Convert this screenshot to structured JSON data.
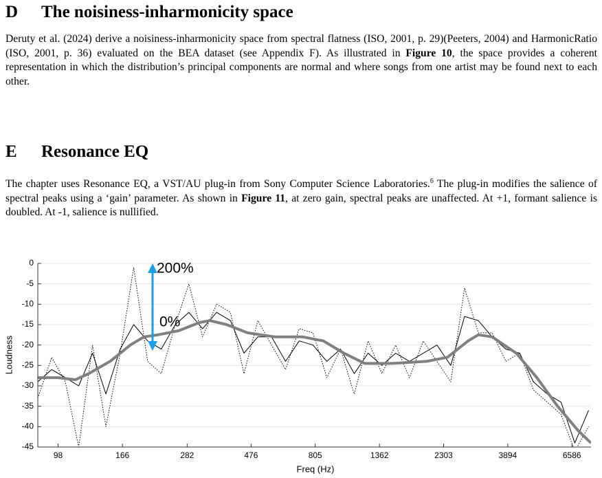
{
  "sections": [
    {
      "label": "D",
      "title": "The noisiness-inharmonicity space",
      "body": [
        "Deruty et al. (2024) derive a noisiness-inharmonicity space from spectral flatness (ISO, 2001, p. 29)(Peeters, 2004) and HarmonicRatio (ISO, 2001, p. 36) evaluated on the BEA dataset (see Appendix F). As illustrated in ",
        "Figure 10",
        ", the space provides a coherent representation in which the distribution’s principal components are normal and where songs from one artist may be found next to each other."
      ]
    },
    {
      "label": "E",
      "title": "Resonance EQ",
      "body": [
        "The chapter uses Resonance EQ, a VST/AU plug-in from Sony Computer Science Laboratories.",
        "6",
        " The plug-in modifies the salience of spectral peaks using a ‘gain’ parameter. As shown in ",
        "Figure 11",
        ", at zero gain, spectral peaks are unaffected. At +1, formant salience is doubled. At -1, salience is nullified."
      ]
    }
  ],
  "chart_data": {
    "type": "line",
    "xlabel": "Freq (Hz)",
    "ylabel": "Loudness",
    "x_scale": "log",
    "xlim": [
      83,
      7700
    ],
    "ylim": [
      -45,
      0
    ],
    "xticks": [
      98,
      166,
      282,
      476,
      805,
      1362,
      2303,
      3894,
      6586
    ],
    "yticks": [
      0,
      -5,
      -10,
      -15,
      -20,
      -25,
      -30,
      -35,
      -40,
      -45
    ],
    "grid": true,
    "annotations": [
      "200%",
      "0%"
    ],
    "series": [
      {
        "color": "#808080",
        "line_style": "solid",
        "line_width": 4,
        "x": [
          83,
          98,
          113,
          126,
          150,
          177,
          198,
          222,
          263,
          312,
          339,
          390,
          462,
          579,
          726,
          860,
          1018,
          1207,
          1512,
          2005,
          2375,
          2813,
          3061,
          3426,
          4175,
          4941,
          5857,
          6938,
          7700
        ],
        "values": [
          -28,
          -28,
          -28.5,
          -27,
          -24,
          -20,
          -18,
          -17.5,
          -16.5,
          -14.5,
          -14,
          -15,
          -17,
          -18,
          -18,
          -19,
          -22,
          -24.5,
          -24.5,
          -24,
          -23,
          -19,
          -17.5,
          -18,
          -22,
          -28,
          -35,
          -41,
          -44
        ]
      },
      {
        "color": "#000000",
        "line_style": "solid",
        "line_width": 1,
        "x": [
          83,
          93,
          104,
          116,
          130,
          145,
          163,
          182,
          204,
          228,
          256,
          286,
          320,
          359,
          402,
          449,
          503,
          563,
          631,
          706,
          790,
          885,
          990,
          1108,
          1241,
          1389,
          1555,
          1741,
          1949,
          2181,
          2442,
          2734,
          3060,
          3426,
          3835,
          4293,
          4806,
          5380,
          6023,
          6742,
          7548
        ],
        "values": [
          -29,
          -26,
          -28,
          -30,
          -22,
          -32,
          -21,
          -15,
          -19,
          -21,
          -15,
          -12,
          -16,
          -12,
          -14,
          -22,
          -18,
          -18,
          -24,
          -19,
          -20,
          -24,
          -21,
          -27,
          -22,
          -25,
          -22,
          -24,
          -22,
          -20,
          -25,
          -13,
          -14,
          -18,
          -21,
          -22,
          -29,
          -32,
          -34,
          -44,
          -36
        ]
      },
      {
        "color": "#000000",
        "line_style": "dotted",
        "line_width": 1,
        "x": [
          83,
          93,
          104,
          116,
          130,
          145,
          163,
          182,
          204,
          228,
          256,
          286,
          320,
          359,
          402,
          449,
          503,
          563,
          631,
          706,
          790,
          885,
          990,
          1108,
          1241,
          1389,
          1555,
          1741,
          1949,
          2181,
          2442,
          2734,
          3060,
          3426,
          3835,
          4293,
          4806,
          5380,
          6023,
          6742,
          7548
        ],
        "values": [
          -33,
          -23,
          -29,
          -45,
          -20,
          -40,
          -22,
          -1,
          -24,
          -27,
          -15,
          -5,
          -18,
          -10,
          -12,
          -27,
          -14,
          -20,
          -26,
          -16,
          -17,
          -28,
          -21,
          -32,
          -19,
          -27,
          -20,
          -28,
          -19,
          -24,
          -29,
          -6,
          -17,
          -17,
          -24,
          -22,
          -31,
          -34,
          -37,
          -46,
          -40
        ]
      }
    ]
  }
}
